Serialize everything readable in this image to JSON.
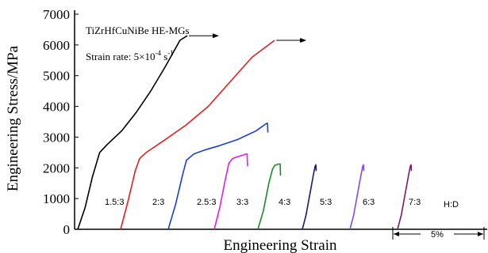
{
  "chart_data": {
    "type": "line",
    "title": "",
    "xlabel": "Engineering Strain",
    "ylabel": "Engineering Stress/MPa",
    "ylim": [
      0,
      7000
    ],
    "yticks": [
      "0",
      "1000",
      "2000",
      "3000",
      "4000",
      "5000",
      "6000",
      "7000"
    ],
    "grid": false,
    "annotations": {
      "alloy": "TiZrHfCuNiBe HE-MGs",
      "strain_rate_prefix": "Strain rate: 5×10",
      "strain_rate_exp": "-4",
      "strain_rate_unit": " s",
      "strain_rate_unit_exp": "-1",
      "ratio_header": "H:D",
      "scale_bar": "5%"
    },
    "x_unit_note": "strain in %, curves offset horizontally",
    "series": [
      {
        "name": "1.5:3",
        "color": "#000000",
        "arrow": true,
        "x": [
          0,
          2,
          4,
          6,
          8,
          12,
          16,
          20,
          24,
          28,
          30
        ],
        "y": [
          0,
          700,
          1700,
          2500,
          2750,
          3200,
          3800,
          4500,
          5300,
          6150,
          6300
        ]
      },
      {
        "name": "2:3",
        "color": "#e02020",
        "arrow": true,
        "x": [
          0,
          2,
          4,
          5.2,
          7,
          12,
          18,
          24,
          30,
          36,
          42.2
        ],
        "y": [
          0,
          900,
          1900,
          2300,
          2500,
          2900,
          3400,
          4000,
          4800,
          5600,
          6150
        ]
      },
      {
        "name": "2.5:3",
        "color": "#1a3fd1",
        "arrow": false,
        "x": [
          0,
          2,
          4,
          5,
          7,
          10,
          14,
          19,
          24,
          27,
          27.2,
          27.3
        ],
        "y": [
          0,
          800,
          1800,
          2250,
          2450,
          2580,
          2720,
          2920,
          3200,
          3450,
          3450,
          3150
        ]
      },
      {
        "name": "3:3",
        "color": "#e020e0",
        "arrow": false,
        "x": [
          0,
          1.5,
          3,
          4,
          5,
          6,
          7,
          8.8,
          9,
          9.1
        ],
        "y": [
          0,
          700,
          1600,
          2150,
          2300,
          2350,
          2380,
          2450,
          2450,
          2050
        ]
      },
      {
        "name": "4:3",
        "color": "#1a8a2a",
        "arrow": false,
        "x": [
          0,
          1.5,
          3,
          4,
          4.6,
          5.5,
          6.1,
          6.2
        ],
        "y": [
          0,
          600,
          1500,
          1950,
          2080,
          2120,
          2120,
          1750
        ]
      },
      {
        "name": "5:3",
        "color": "#1a1a7a",
        "arrow": false,
        "x": [
          0,
          1,
          2,
          3,
          3.5,
          3.7,
          3.8
        ],
        "y": [
          0,
          450,
          1100,
          1750,
          2050,
          2100,
          1900
        ]
      },
      {
        "name": "6:3",
        "color": "#8a4ae0",
        "arrow": false,
        "x": [
          0,
          1,
          2,
          3,
          3.5,
          3.7,
          3.8
        ],
        "y": [
          0,
          450,
          1100,
          1750,
          2050,
          2100,
          1900
        ]
      },
      {
        "name": "7:3",
        "color": "#7a1a6a",
        "arrow": false,
        "x": [
          0,
          1,
          2,
          3,
          3.5,
          3.7,
          3.8
        ],
        "y": [
          0,
          450,
          1100,
          1750,
          2050,
          2100,
          1900
        ]
      }
    ]
  }
}
